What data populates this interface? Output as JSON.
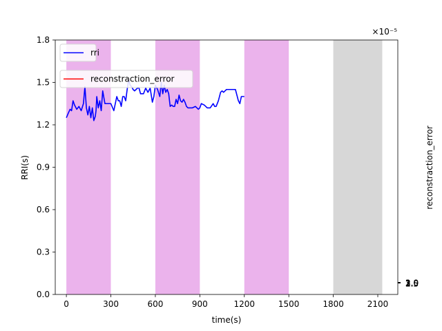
{
  "chart_data": {
    "type": "line",
    "xlabel": "time(s)",
    "ylabel": "RRI(s)",
    "y2label": "reconstraction_error",
    "y2_offset_text": "×10⁻⁵",
    "xlim": [
      -75,
      2235
    ],
    "ylim": [
      0.0,
      1.8
    ],
    "xticks": [
      "0",
      "300",
      "600",
      "900",
      "1200",
      "1500",
      "1800",
      "2100"
    ],
    "yticks": [
      "0.0",
      "0.3",
      "0.6",
      "0.9",
      "1.2",
      "1.5",
      "1.8"
    ],
    "y2_overlapping_ticks": [
      "1.0",
      "2.5",
      "3.0",
      "1.5",
      "2.0",
      "3.5"
    ],
    "grid": false,
    "legend_placement": "top-left",
    "shaded_regions": [
      {
        "x": [
          0,
          300
        ],
        "color": "#ebb3ec"
      },
      {
        "x": [
          600,
          900
        ],
        "color": "#ebb3ec"
      },
      {
        "x": [
          1200,
          1500
        ],
        "color": "#ebb3ec"
      },
      {
        "x": [
          1800,
          2130
        ],
        "color": "#d7d7d7"
      }
    ],
    "series": [
      {
        "name": "rri",
        "color": "#0000ff",
        "x": [
          0,
          12,
          25,
          35,
          45,
          55,
          70,
          85,
          100,
          115,
          125,
          135,
          145,
          155,
          165,
          175,
          185,
          195,
          200,
          205,
          215,
          225,
          235,
          245,
          260,
          275,
          290,
          300,
          320,
          340,
          350,
          360,
          370,
          380,
          390,
          400,
          410,
          420,
          430,
          440,
          450,
          460,
          470,
          480,
          490,
          500,
          510,
          520,
          535,
          550,
          565,
          580,
          590,
          600,
          615,
          630,
          640,
          650,
          660,
          670,
          680,
          690,
          700,
          710,
          720,
          730,
          740,
          750,
          760,
          770,
          780,
          790,
          800,
          810,
          820,
          830,
          840,
          850,
          870,
          890,
          900,
          910,
          930,
          950,
          970,
          990,
          1000,
          1010,
          1025,
          1040,
          1050,
          1060,
          1070,
          1080,
          1090,
          1100,
          1120,
          1140,
          1160,
          1170,
          1180,
          1190,
          1200
        ],
        "y": [
          1.25,
          1.28,
          1.31,
          1.3,
          1.37,
          1.34,
          1.31,
          1.33,
          1.3,
          1.35,
          1.47,
          1.32,
          1.27,
          1.33,
          1.25,
          1.32,
          1.23,
          1.26,
          1.3,
          1.4,
          1.32,
          1.37,
          1.3,
          1.44,
          1.35,
          1.35,
          1.35,
          1.35,
          1.3,
          1.4,
          1.37,
          1.37,
          1.33,
          1.4,
          1.4,
          1.37,
          1.45,
          1.52,
          1.48,
          1.47,
          1.45,
          1.44,
          1.45,
          1.46,
          1.46,
          1.42,
          1.42,
          1.42,
          1.46,
          1.43,
          1.46,
          1.36,
          1.4,
          1.48,
          1.45,
          1.4,
          1.5,
          1.42,
          1.48,
          1.43,
          1.45,
          1.42,
          1.33,
          1.34,
          1.33,
          1.33,
          1.38,
          1.35,
          1.41,
          1.37,
          1.36,
          1.38,
          1.36,
          1.33,
          1.32,
          1.32,
          1.32,
          1.32,
          1.33,
          1.31,
          1.32,
          1.35,
          1.34,
          1.32,
          1.32,
          1.35,
          1.33,
          1.33,
          1.37,
          1.43,
          1.44,
          1.43,
          1.44,
          1.45,
          1.45,
          1.45,
          1.45,
          1.45,
          1.37,
          1.35,
          1.4,
          1.4,
          1.4
        ]
      },
      {
        "name": "reconstraction_error",
        "color": "#ff0000",
        "x": [],
        "y": []
      }
    ]
  }
}
